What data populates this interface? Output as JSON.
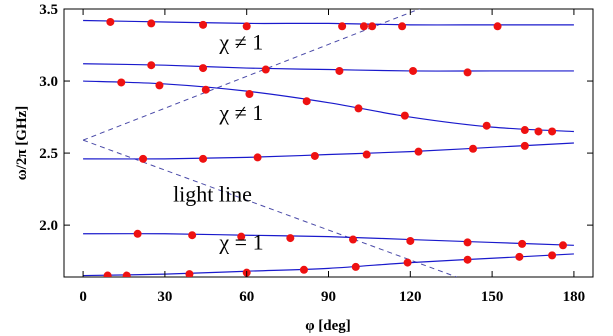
{
  "chart_data": {
    "type": "scatter",
    "xlabel": "φ [deg]",
    "ylabel": "ω/2π [GHz]",
    "xlim": [
      -7,
      187
    ],
    "ylim": [
      1.64,
      3.5
    ],
    "xticks": [
      0,
      30,
      60,
      90,
      120,
      150,
      180
    ],
    "yticks": [
      2.0,
      2.5,
      3.0,
      3.5
    ],
    "ytick_labels": [
      "2.0",
      "2.5",
      "3.0",
      "3.5"
    ],
    "grid": false,
    "colors": {
      "line": "#1a1acc",
      "light_line": "#4a4aa8",
      "points": "#ee1111"
    },
    "annotations": [
      {
        "text": "χ ≠ 1",
        "x": 50,
        "y": 3.22
      },
      {
        "text": "χ ≠ 1",
        "x": 50,
        "y": 2.73
      },
      {
        "text": "light line",
        "x": 33,
        "y": 2.165
      },
      {
        "text": "χ = 1",
        "x": 50,
        "y": 1.83
      }
    ],
    "light_lines": [
      {
        "x": [
          0,
          126
        ],
        "y": [
          2.59,
          3.52
        ]
      },
      {
        "x": [
          0,
          137
        ],
        "y": [
          2.59,
          1.64
        ]
      }
    ],
    "series": [
      {
        "curve": {
          "x": [
            0,
            30,
            60,
            90,
            120,
            150,
            180
          ],
          "y": [
            3.42,
            3.41,
            3.4,
            3.4,
            3.39,
            3.39,
            3.39
          ]
        },
        "points": {
          "x": [
            10,
            25,
            44,
            60,
            95,
            103,
            106,
            117,
            152
          ],
          "y": [
            3.41,
            3.4,
            3.39,
            3.38,
            3.38,
            3.38,
            3.38,
            3.38,
            3.38
          ]
        }
      },
      {
        "curve": {
          "x": [
            0,
            30,
            60,
            90,
            120,
            150,
            180
          ],
          "y": [
            3.12,
            3.11,
            3.09,
            3.08,
            3.07,
            3.07,
            3.07
          ]
        },
        "points": {
          "x": [
            25,
            44,
            67,
            94,
            121,
            141
          ],
          "y": [
            3.11,
            3.09,
            3.08,
            3.07,
            3.07,
            3.06
          ]
        }
      },
      {
        "curve": {
          "x": [
            0,
            30,
            60,
            90,
            120,
            150,
            180
          ],
          "y": [
            3.0,
            2.98,
            2.93,
            2.85,
            2.75,
            2.68,
            2.65
          ]
        },
        "points": {
          "x": [
            14,
            28,
            45,
            61,
            82,
            101,
            118,
            148,
            162,
            167,
            172
          ],
          "y": [
            2.99,
            2.97,
            2.94,
            2.91,
            2.86,
            2.81,
            2.76,
            2.69,
            2.66,
            2.65,
            2.65
          ]
        }
      },
      {
        "curve": {
          "x": [
            0,
            30,
            60,
            90,
            120,
            150,
            180
          ],
          "y": [
            2.46,
            2.46,
            2.47,
            2.49,
            2.51,
            2.54,
            2.57
          ]
        },
        "points": {
          "x": [
            22,
            44,
            64,
            85,
            104,
            123,
            143,
            162
          ],
          "y": [
            2.46,
            2.46,
            2.47,
            2.48,
            2.49,
            2.51,
            2.53,
            2.55
          ]
        }
      },
      {
        "curve": {
          "x": [
            0,
            30,
            60,
            90,
            120,
            150,
            180
          ],
          "y": [
            1.94,
            1.94,
            1.93,
            1.92,
            1.9,
            1.88,
            1.86
          ]
        },
        "points": {
          "x": [
            20,
            40,
            58,
            76,
            99,
            120,
            141,
            161,
            176
          ],
          "y": [
            1.94,
            1.93,
            1.92,
            1.91,
            1.9,
            1.89,
            1.88,
            1.87,
            1.86
          ]
        }
      },
      {
        "curve": {
          "x": [
            0,
            30,
            60,
            90,
            120,
            150,
            180
          ],
          "y": [
            1.65,
            1.66,
            1.68,
            1.7,
            1.74,
            1.77,
            1.8
          ]
        },
        "points": {
          "x": [
            9,
            16,
            39,
            60,
            81,
            100,
            119,
            141,
            160,
            172
          ],
          "y": [
            1.65,
            1.65,
            1.66,
            1.67,
            1.69,
            1.71,
            1.74,
            1.76,
            1.78,
            1.79
          ]
        }
      }
    ]
  }
}
